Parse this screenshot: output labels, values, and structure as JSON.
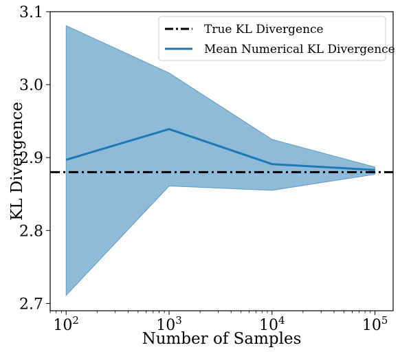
{
  "chart_data": {
    "type": "line",
    "title": "",
    "xlabel": "Number of Samples",
    "ylabel": "KL Divergence",
    "x_scale": "log",
    "xlim": [
      70,
      150000
    ],
    "ylim": [
      2.69,
      3.1
    ],
    "x_ticks": [
      {
        "value": 100,
        "base": "10",
        "exp": "2"
      },
      {
        "value": 1000,
        "base": "10",
        "exp": "3"
      },
      {
        "value": 10000,
        "base": "10",
        "exp": "4"
      },
      {
        "value": 100000,
        "base": "10",
        "exp": "5"
      }
    ],
    "y_ticks": [
      {
        "value": 2.7,
        "label": "2.7"
      },
      {
        "value": 2.8,
        "label": "2.8"
      },
      {
        "value": 2.9,
        "label": "2.9"
      },
      {
        "value": 3.0,
        "label": "3.0"
      },
      {
        "value": 3.1,
        "label": "3.1"
      }
    ],
    "x": [
      100,
      1000,
      10000,
      100000
    ],
    "series": [
      {
        "name": "Mean Numerical KL Divergence",
        "values": [
          2.897,
          2.939,
          2.891,
          2.883
        ],
        "color": "#1f77b4",
        "style": "solid"
      },
      {
        "name": "True KL Divergence",
        "values": [
          2.88,
          2.88,
          2.88,
          2.88
        ],
        "color": "#000000",
        "style": "dashdot",
        "horizontal": true
      }
    ],
    "band": {
      "lower": [
        2.711,
        2.861,
        2.855,
        2.877
      ],
      "upper": [
        3.081,
        3.016,
        2.925,
        2.887
      ],
      "color": "#1f77b4",
      "opacity": 0.5
    },
    "legend": {
      "position": "top-right",
      "entries": [
        "True KL Divergence",
        "Mean Numerical KL Divergence"
      ]
    },
    "grid": false
  }
}
